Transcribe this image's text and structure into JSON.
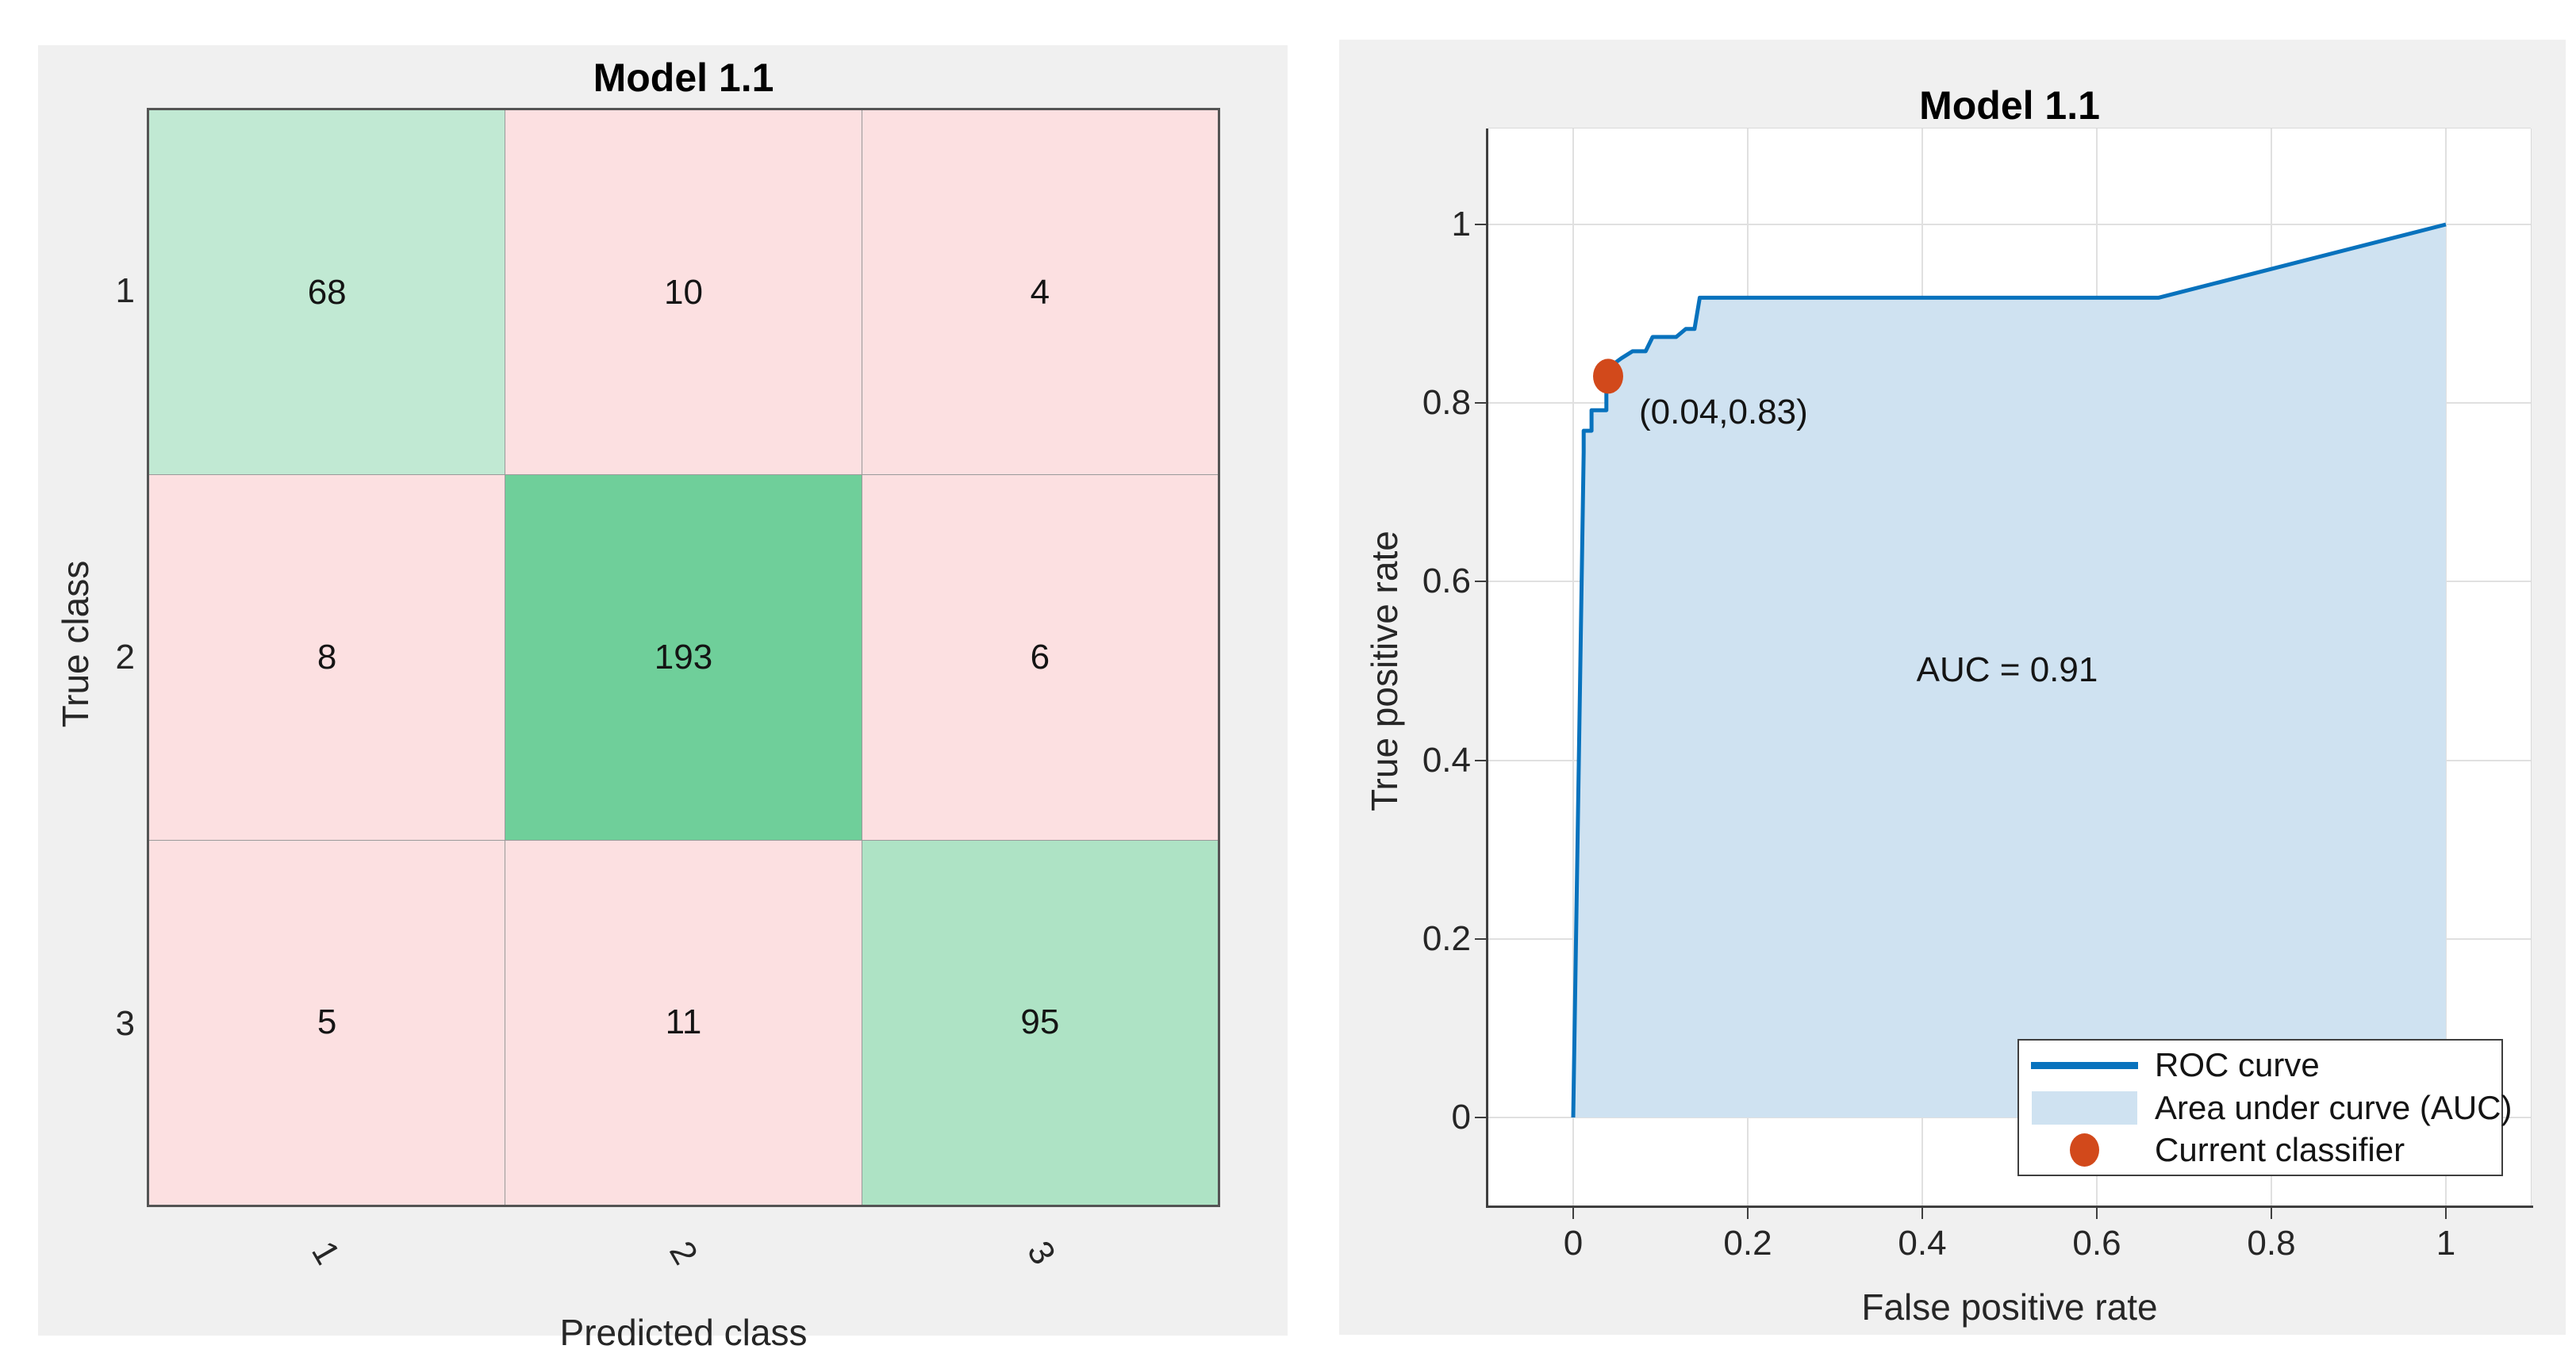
{
  "ui": {
    "background": "#ffffff",
    "panel_background": "#f0f0f0",
    "left": {
      "cell_colors": [
        [
          "#c1e9d3",
          "#fce0e1",
          "#fce0e1"
        ],
        [
          "#fce0e1",
          "#6fcf9a",
          "#fce0e1"
        ],
        [
          "#fce0e1",
          "#fce0e1",
          "#aee3c5"
        ]
      ],
      "grid_line_color": "#9a9a9a",
      "outer_border_color": "#545454"
    },
    "right": {
      "curve_color": "#0872bd",
      "fill_color": "#cfe2f1",
      "marker_color": "#d2491b",
      "grid_color": "#e0e0e0",
      "spine_color": "#3f3f3f",
      "legend": [
        {
          "swatch": "line"
        },
        {
          "swatch": "patch"
        },
        {
          "swatch": "dot"
        }
      ]
    }
  },
  "chart_data": [
    {
      "type": "heatmap",
      "title": "Model 1.1",
      "xlabel": "Predicted class",
      "ylabel": "True class",
      "x_categories": [
        "1",
        "2",
        "3"
      ],
      "y_categories": [
        "1",
        "2",
        "3"
      ],
      "values": [
        [
          68,
          10,
          4
        ],
        [
          8,
          193,
          6
        ],
        [
          5,
          11,
          95
        ]
      ],
      "diagonal_color_scheme": "green",
      "off_diagonal_color_scheme": "pink",
      "x_tick_rotation_deg": 60
    },
    {
      "type": "line",
      "title": "Model 1.1",
      "xlabel": "False positive rate",
      "ylabel": "True positive rate",
      "xlim": [
        -0.1,
        1.1
      ],
      "ylim": [
        -0.1,
        1.11
      ],
      "x_ticks": [
        0,
        0.2,
        0.4,
        0.6,
        0.8,
        1
      ],
      "y_ticks": [
        0,
        0.2,
        0.4,
        0.6,
        0.8,
        1
      ],
      "grid": true,
      "legend_position": "bottom-right",
      "legend_entries": [
        "ROC curve",
        "Area under curve (AUC)",
        "Current classifier"
      ],
      "auc_text": "AUC = 0.91",
      "series": [
        {
          "name": "ROC curve",
          "points": [
            [
              0,
              0
            ],
            [
              0.012,
              0.745
            ],
            [
              0.012,
              0.769
            ],
            [
              0.021,
              0.769
            ],
            [
              0.021,
              0.792
            ],
            [
              0.038,
              0.792
            ],
            [
              0.038,
              0.813
            ],
            [
              0.041,
              0.84
            ],
            [
              0.055,
              0.85
            ],
            [
              0.068,
              0.858
            ],
            [
              0.083,
              0.858
            ],
            [
              0.091,
              0.874
            ],
            [
              0.118,
              0.874
            ],
            [
              0.129,
              0.883
            ],
            [
              0.139,
              0.883
            ],
            [
              0.145,
              0.918
            ],
            [
              0.671,
              0.918
            ],
            [
              1,
              1
            ]
          ],
          "area_filled": true
        }
      ],
      "point_markers": [
        {
          "name": "Current classifier",
          "x": 0.04,
          "y": 0.83,
          "label": "(0.04,0.83)"
        }
      ]
    }
  ]
}
